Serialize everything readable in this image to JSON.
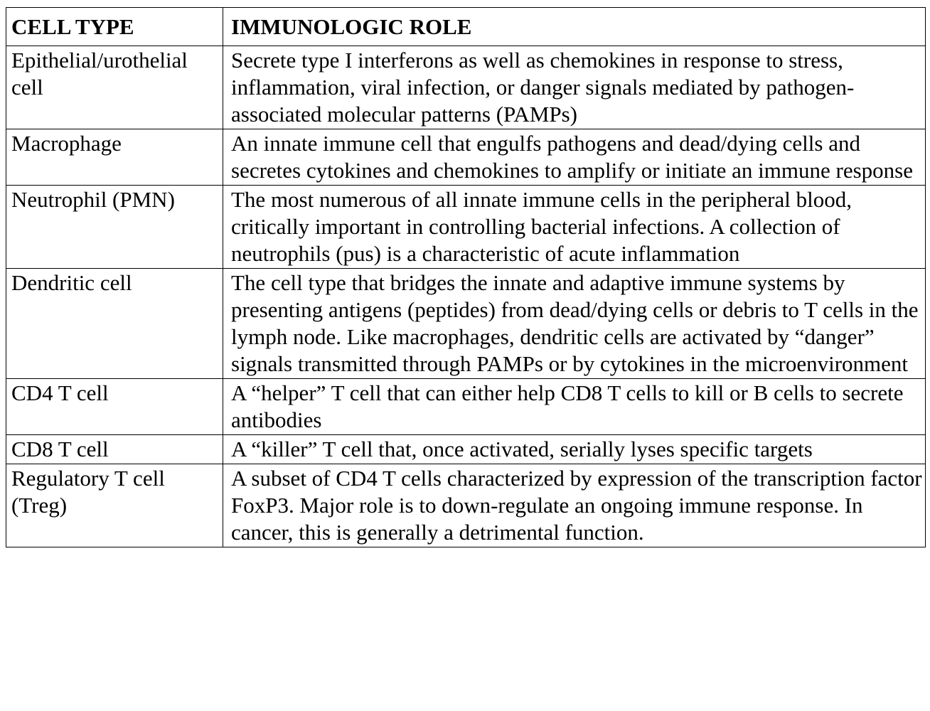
{
  "table": {
    "headers": [
      "CELL TYPE",
      "IMMUNOLOGIC ROLE"
    ],
    "rows": [
      {
        "cell_type": "Epithelial/urothelial cell",
        "role": "Secrete type I interferons as well as chemokines in response to stress, inflammation, viral infection, or danger signals mediated by pathogen-associated molecular patterns (PAMPs)"
      },
      {
        "cell_type": "Macrophage",
        "role": "An innate immune cell that engulfs pathogens and dead/dying cells and secretes cytokines and chemokines to amplify or initiate an immune response"
      },
      {
        "cell_type": "Neutrophil (PMN)",
        "role": "The most numerous of all innate immune cells in the peripheral blood, critically important in controlling bacterial infections. A collection of neutrophils (pus) is a characteristic of acute inflammation"
      },
      {
        "cell_type": "Dendritic cell",
        "role": "The cell type that bridges the innate and adaptive immune systems by presenting antigens (peptides) from dead/dying cells or debris to T cells in the lymph node. Like macrophages, dendritic cells are activated by “danger” signals transmitted through PAMPs or by cytokines in the microenvironment"
      },
      {
        "cell_type": "CD4 T cell",
        "role": "A “helper” T cell that can either help CD8 T cells to kill or B cells to secrete antibodies"
      },
      {
        "cell_type": "CD8 T cell",
        "role": "A “killer” T cell that, once activated, serially lyses specific targets"
      },
      {
        "cell_type": "Regulatory T cell (Treg)",
        "role": "A subset of CD4 T cells characterized by expression of the transcription factor FoxP3. Major role is to down-regulate an ongoing immune response. In cancer, this is generally a detrimental function."
      }
    ]
  }
}
